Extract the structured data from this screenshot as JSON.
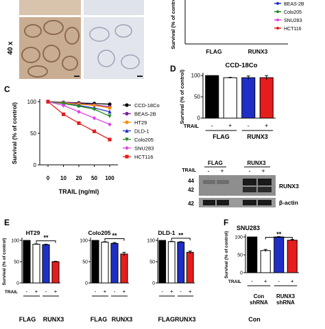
{
  "colors": {
    "black": "#000000",
    "white": "#ffffff",
    "blue": "#1f2fc6",
    "red": "#e51d1d",
    "tissue": "#c9ad93"
  },
  "panel_letters": [
    "C",
    "D",
    "E",
    "F"
  ],
  "micrograph": {
    "magnification_label": "40 x"
  },
  "top_right_remnant": {
    "ylabel": "Survival (% of control)",
    "xlabels": [
      "FLAG",
      "RUNX3"
    ],
    "legend": [
      {
        "name": "BEAS-2B",
        "color": "#1f2fc6"
      },
      {
        "name": "Colo205",
        "color": "#1e8a1e"
      },
      {
        "name": "SNU283",
        "color": "#e040e0"
      },
      {
        "name": "HCT116",
        "color": "#e51d1d"
      }
    ]
  },
  "western_blot": {
    "header": {
      "trail": "TRAIL",
      "flag": "FLAG",
      "runx3": "RUNX3"
    },
    "lanes": [
      "-",
      "+",
      "-",
      "+"
    ],
    "markers": [
      "44",
      "42",
      "42"
    ],
    "bands": [
      "RUNX3",
      "β-actin"
    ]
  },
  "chart_data": [
    {
      "panel": "C",
      "type": "line",
      "xlabel": "TRAIL (ng/ml)",
      "ylabel": "Survival (% of control)",
      "x": [
        "0",
        "10",
        "20",
        "50",
        "100"
      ],
      "ylim": [
        0,
        100
      ],
      "yticks": [
        "0",
        "50",
        "100"
      ],
      "legend_position": "right",
      "series": [
        {
          "name": "CCD-18Co",
          "color": "#000000",
          "marker": "circle",
          "values": [
            100,
            99,
            98,
            97,
            96
          ]
        },
        {
          "name": "BEAS-2B",
          "color": "#7a1fa2",
          "marker": "circle",
          "values": [
            100,
            99,
            97,
            95,
            92
          ]
        },
        {
          "name": "HT29",
          "color": "#ff8c00",
          "marker": "circle",
          "values": [
            100,
            98,
            96,
            94,
            90
          ]
        },
        {
          "name": "DLD-1",
          "color": "#1f2fc6",
          "marker": "triangle",
          "values": [
            100,
            97,
            94,
            90,
            84
          ]
        },
        {
          "name": "Colo205",
          "color": "#1e8a1e",
          "marker": "triangle-down",
          "values": [
            100,
            97,
            93,
            88,
            77
          ]
        },
        {
          "name": "SNU283",
          "color": "#e040e0",
          "marker": "diamond",
          "values": [
            100,
            94,
            84,
            74,
            64
          ]
        },
        {
          "name": "HCT116",
          "color": "#e51d1d",
          "marker": "square",
          "values": [
            100,
            80,
            66,
            53,
            40
          ]
        }
      ]
    },
    {
      "panel": "D",
      "type": "bar",
      "title": "CCD-18Co",
      "ylabel": "Survival (% of control)",
      "ylim": [
        0,
        100
      ],
      "yticks": [
        "0",
        "50",
        "100"
      ],
      "trail_label": "TRAIL",
      "treatment": [
        "-",
        "+",
        "-",
        "+"
      ],
      "groups": [
        "FLAG",
        "RUNX3"
      ],
      "values": [
        100,
        95,
        95,
        95
      ],
      "errors": [
        0,
        1,
        4,
        5
      ],
      "colors": [
        "#000000",
        "#ffffff",
        "#1f2fc6",
        "#e51d1d"
      ],
      "significance": ""
    },
    {
      "panel": "E",
      "type": "bar",
      "title": "HT29",
      "ylabel": "Survival (% of control)",
      "ylim": [
        0,
        100
      ],
      "yticks": [
        "0",
        "50",
        "100"
      ],
      "trail_label": "TRAIL",
      "treatment": [
        "-",
        "+",
        "-",
        "+"
      ],
      "groups": [
        "FLAG",
        "RUNX3"
      ],
      "values": [
        100,
        91,
        90,
        50
      ],
      "errors": [
        0,
        1,
        1,
        1
      ],
      "colors": [
        "#000000",
        "#ffffff",
        "#1f2fc6",
        "#e51d1d"
      ],
      "significance": "**"
    },
    {
      "panel": "E",
      "type": "bar",
      "title": "Colo205",
      "ylabel": "",
      "ylim": [
        0,
        100
      ],
      "yticks": [
        "0",
        "50",
        "100"
      ],
      "trail_label": "",
      "treatment": [
        "-",
        "+",
        "-",
        "+"
      ],
      "groups": [
        "FLAG",
        "RUNX3"
      ],
      "values": [
        100,
        96,
        93,
        68
      ],
      "errors": [
        0,
        1,
        2,
        4
      ],
      "colors": [
        "#000000",
        "#ffffff",
        "#1f2fc6",
        "#e51d1d"
      ],
      "significance": "**"
    },
    {
      "panel": "E",
      "type": "bar",
      "title": "DLD-1",
      "ylabel": "",
      "ylim": [
        0,
        100
      ],
      "yticks": [
        "0",
        "50",
        "100"
      ],
      "trail_label": "",
      "treatment": [
        "-",
        "+",
        "-",
        "+"
      ],
      "groups": [
        "FLAG",
        "RUNX3"
      ],
      "groups_joined": "FLAGRUNX3",
      "values": [
        100,
        97,
        96,
        72
      ],
      "errors": [
        0,
        1,
        1,
        3
      ],
      "colors": [
        "#000000",
        "#ffffff",
        "#1f2fc6",
        "#e51d1d"
      ],
      "significance": "**"
    },
    {
      "panel": "F",
      "type": "bar",
      "title": "SNU283",
      "ylabel": "Survival (% of control)",
      "ylim": [
        0,
        100
      ],
      "yticks": [
        "0",
        "50",
        "100"
      ],
      "trail_label": "TRAIL",
      "treatment": [
        "-",
        "+",
        "-",
        "+"
      ],
      "groups": [
        "Con\nshRNA",
        "RUNX3\nshRNA"
      ],
      "below_label": "Con",
      "values": [
        100,
        62,
        100,
        91
      ],
      "errors": [
        0,
        3,
        1,
        2
      ],
      "colors": [
        "#000000",
        "#ffffff",
        "#1f2fc6",
        "#e51d1d"
      ],
      "significance": "**"
    }
  ]
}
